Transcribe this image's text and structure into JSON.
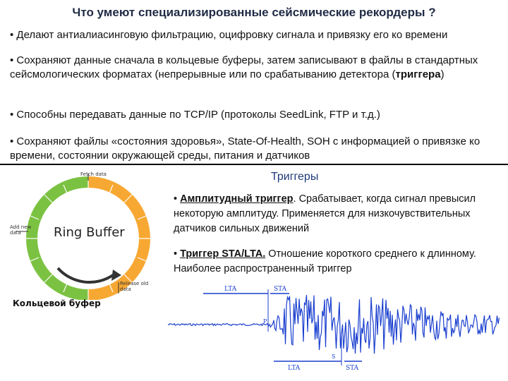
{
  "title": "Что умеют специализированные сейсмические рекордеры ?",
  "bullets": {
    "b1": "• Делают антиалиасинговую фильтрацию, оцифровку сигнала и привязку его ко времени",
    "b2_main": "• Сохраняют данные сначала в кольцевые буферы, затем записывают в файлы в стандартных сейсмологических форматах (непрерывные или по срабатыванию детектора (",
    "b2_bold": "триггера",
    "b2_end": ")",
    "b3": "• Способны передавать данные по TCP/IP (протоколы SeedLink, FTP и т.д.)",
    "b4": "• Сохраняют файлы «состояния здоровья», State-Of-Health, SOH с информацией о привязке ко времени, состоянии окружающей среды, питания и датчиков"
  },
  "triggers": {
    "heading": "Триггеры",
    "amp_name": "Амплитудный триггер",
    "amp_text": ". Срабатывает, когда сигнал превысил некоторую амплитуду. Применяется для низкочувствительных датчиков сильных движений",
    "sta_name": "Триггер STA/LTA.",
    "sta_text": " Отношение короткого среднего к длинному. Наиболее распространенный триггер"
  },
  "ring_buffer": {
    "label": "Ring Buffer",
    "caption": "Кольцевой буфер",
    "fetch": "Fetch data",
    "add": "Add new data",
    "release": "Release old data",
    "colors": {
      "green": "#7cc242",
      "orange": "#f7a833"
    }
  },
  "seismogram": {
    "lta_top": "LTA",
    "sta_top": "STA",
    "lta_bottom": "LTA",
    "sta_bottom": "STA",
    "p_label": "P",
    "s_label": "S"
  }
}
